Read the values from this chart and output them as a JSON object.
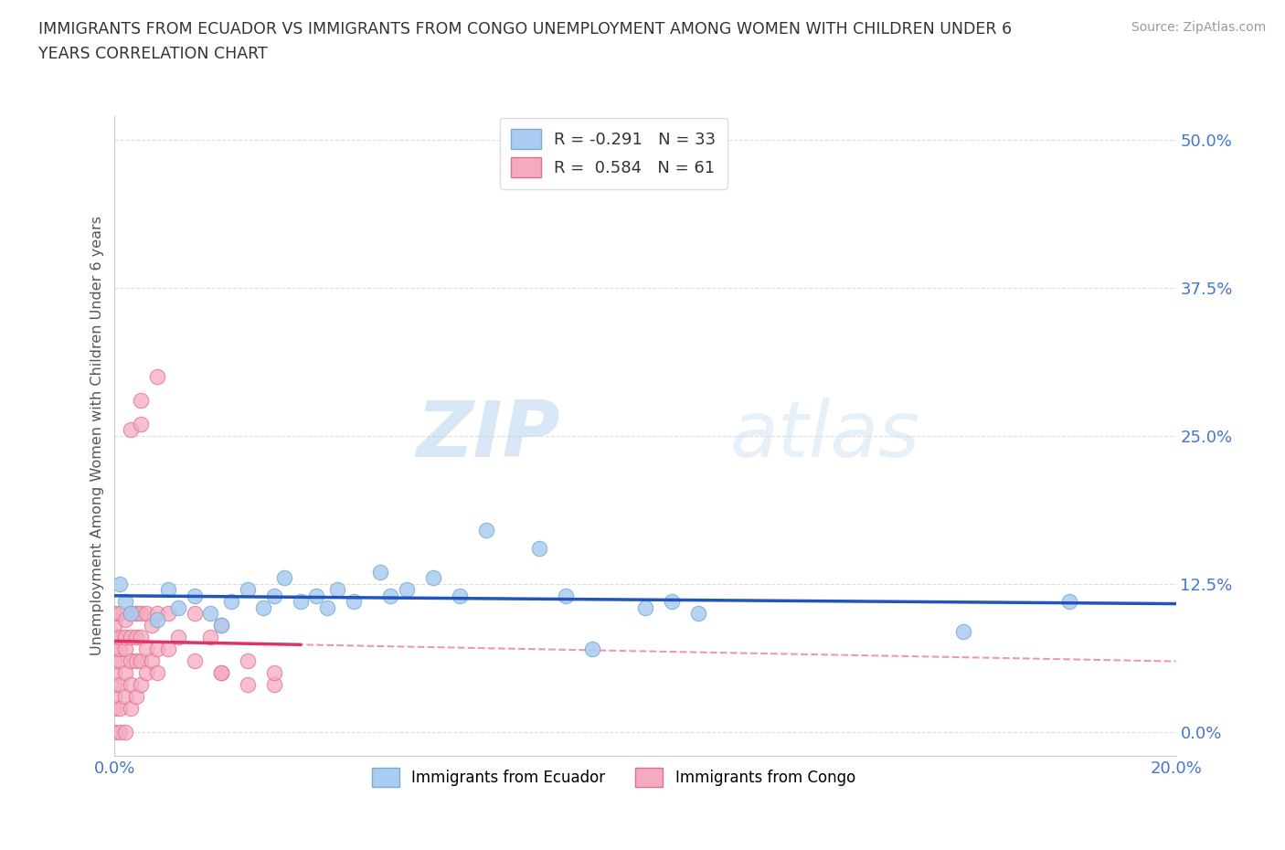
{
  "title": "IMMIGRANTS FROM ECUADOR VS IMMIGRANTS FROM CONGO UNEMPLOYMENT AMONG WOMEN WITH CHILDREN UNDER 6\nYEARS CORRELATION CHART",
  "source": "Source: ZipAtlas.com",
  "ylabel": "Unemployment Among Women with Children Under 6 years",
  "xlim": [
    0.0,
    0.2
  ],
  "ylim": [
    -0.02,
    0.52
  ],
  "xticks": [
    0.0,
    0.05,
    0.1,
    0.15,
    0.2
  ],
  "xtick_labels": [
    "0.0%",
    "",
    "",
    "",
    "20.0%"
  ],
  "ytick_labels": [
    "0.0%",
    "12.5%",
    "25.0%",
    "37.5%",
    "50.0%"
  ],
  "yticks": [
    0.0,
    0.125,
    0.25,
    0.375,
    0.5
  ],
  "ecuador_color": "#aaccf0",
  "ecuador_edge": "#7badd4",
  "congo_color": "#f5aac0",
  "congo_edge": "#e07090",
  "ecuador_line_color": "#2255bb",
  "congo_line_color": "#dd3366",
  "R_ecuador": -0.291,
  "N_ecuador": 33,
  "R_congo": 0.584,
  "N_congo": 61,
  "ecuador_x": [
    0.001,
    0.002,
    0.003,
    0.008,
    0.01,
    0.012,
    0.015,
    0.018,
    0.02,
    0.022,
    0.025,
    0.028,
    0.03,
    0.032,
    0.035,
    0.038,
    0.04,
    0.042,
    0.045,
    0.05,
    0.052,
    0.055,
    0.06,
    0.065,
    0.07,
    0.08,
    0.085,
    0.09,
    0.1,
    0.105,
    0.11,
    0.16,
    0.18
  ],
  "ecuador_y": [
    0.125,
    0.11,
    0.1,
    0.095,
    0.12,
    0.105,
    0.115,
    0.1,
    0.09,
    0.11,
    0.12,
    0.105,
    0.115,
    0.13,
    0.11,
    0.115,
    0.105,
    0.12,
    0.11,
    0.135,
    0.115,
    0.12,
    0.13,
    0.115,
    0.17,
    0.155,
    0.115,
    0.07,
    0.105,
    0.11,
    0.1,
    0.085,
    0.11
  ],
  "congo_x": [
    0.0,
    0.0,
    0.0,
    0.0,
    0.0,
    0.0,
    0.0,
    0.0,
    0.0,
    0.0,
    0.001,
    0.001,
    0.001,
    0.001,
    0.001,
    0.001,
    0.001,
    0.002,
    0.002,
    0.002,
    0.002,
    0.002,
    0.002,
    0.003,
    0.003,
    0.003,
    0.003,
    0.003,
    0.003,
    0.004,
    0.004,
    0.004,
    0.004,
    0.005,
    0.005,
    0.005,
    0.005,
    0.005,
    0.005,
    0.006,
    0.006,
    0.006,
    0.007,
    0.007,
    0.008,
    0.008,
    0.008,
    0.008,
    0.01,
    0.01,
    0.012,
    0.015,
    0.015,
    0.018,
    0.02,
    0.02,
    0.02,
    0.025,
    0.025,
    0.03,
    0.03
  ],
  "congo_y": [
    0.0,
    0.02,
    0.03,
    0.04,
    0.05,
    0.06,
    0.07,
    0.08,
    0.09,
    0.1,
    0.0,
    0.02,
    0.04,
    0.06,
    0.07,
    0.08,
    0.1,
    0.0,
    0.03,
    0.05,
    0.07,
    0.08,
    0.095,
    0.02,
    0.04,
    0.06,
    0.08,
    0.1,
    0.255,
    0.03,
    0.06,
    0.08,
    0.1,
    0.04,
    0.06,
    0.08,
    0.1,
    0.26,
    0.28,
    0.05,
    0.07,
    0.1,
    0.06,
    0.09,
    0.05,
    0.07,
    0.1,
    0.3,
    0.07,
    0.1,
    0.08,
    0.06,
    0.1,
    0.08,
    0.05,
    0.09,
    0.05,
    0.04,
    0.06,
    0.04,
    0.05
  ],
  "watermark_zip": "ZIP",
  "watermark_atlas": "atlas",
  "background_color": "#ffffff",
  "grid_color": "#dddddd",
  "tick_color": "#4477cc"
}
